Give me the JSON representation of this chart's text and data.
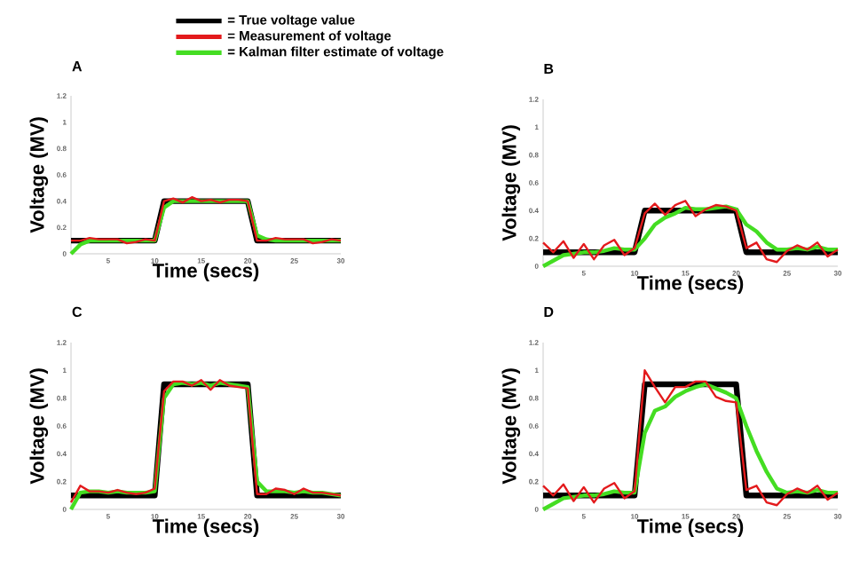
{
  "chart_data": [
    {
      "type": "line",
      "title": "A",
      "xlabel": "Time (secs)",
      "ylabel": "Voltage (MV)",
      "x": [
        1,
        2,
        3,
        4,
        5,
        6,
        7,
        8,
        9,
        10,
        11,
        12,
        13,
        14,
        15,
        16,
        17,
        18,
        19,
        20,
        21,
        22,
        23,
        24,
        25,
        26,
        27,
        28,
        29,
        30
      ],
      "xlim": [
        1,
        30
      ],
      "ylim": [
        0,
        1.2
      ],
      "xticks": [
        5,
        10,
        15,
        20,
        25,
        30
      ],
      "yticks": [
        0,
        0.2,
        0.4,
        0.6,
        0.8,
        1,
        1.2
      ],
      "legend": "top",
      "grid": false,
      "series": [
        {
          "name": "= True voltage value",
          "color": "#000000",
          "values": [
            0.1,
            0.1,
            0.1,
            0.1,
            0.1,
            0.1,
            0.1,
            0.1,
            0.1,
            0.1,
            0.4,
            0.4,
            0.4,
            0.4,
            0.4,
            0.4,
            0.4,
            0.4,
            0.4,
            0.4,
            0.1,
            0.1,
            0.1,
            0.1,
            0.1,
            0.1,
            0.1,
            0.1,
            0.1,
            0.1
          ]
        },
        {
          "name": "= Measurement of voltage",
          "color": "#e31a1c",
          "values": [
            0.1,
            0.1,
            0.12,
            0.11,
            0.11,
            0.11,
            0.08,
            0.09,
            0.11,
            0.1,
            0.4,
            0.42,
            0.39,
            0.43,
            0.4,
            0.41,
            0.39,
            0.41,
            0.41,
            0.4,
            0.1,
            0.1,
            0.12,
            0.11,
            0.11,
            0.11,
            0.08,
            0.09,
            0.11,
            0.1
          ]
        },
        {
          "name": "= Kalman filter estimate of voltage",
          "color": "#44dd22",
          "values": [
            0,
            0.07,
            0.1,
            0.1,
            0.1,
            0.1,
            0.1,
            0.1,
            0.1,
            0.1,
            0.35,
            0.4,
            0.4,
            0.4,
            0.4,
            0.4,
            0.4,
            0.4,
            0.4,
            0.4,
            0.14,
            0.11,
            0.1,
            0.1,
            0.1,
            0.1,
            0.1,
            0.1,
            0.1,
            0.1
          ]
        }
      ]
    },
    {
      "type": "line",
      "title": "B",
      "xlabel": "Time (secs)",
      "ylabel": "Voltage (MV)",
      "x": [
        1,
        2,
        3,
        4,
        5,
        6,
        7,
        8,
        9,
        10,
        11,
        12,
        13,
        14,
        15,
        16,
        17,
        18,
        19,
        20,
        21,
        22,
        23,
        24,
        25,
        26,
        27,
        28,
        29,
        30
      ],
      "xlim": [
        1,
        30
      ],
      "ylim": [
        0,
        1.2
      ],
      "xticks": [
        5,
        10,
        15,
        20,
        25,
        30
      ],
      "yticks": [
        0,
        0.2,
        0.4,
        0.6,
        0.8,
        1,
        1.2
      ],
      "grid": false,
      "series": [
        {
          "color": "#000000",
          "values": [
            0.1,
            0.1,
            0.1,
            0.1,
            0.1,
            0.1,
            0.1,
            0.1,
            0.1,
            0.1,
            0.4,
            0.4,
            0.4,
            0.4,
            0.4,
            0.4,
            0.4,
            0.4,
            0.4,
            0.4,
            0.1,
            0.1,
            0.1,
            0.1,
            0.1,
            0.1,
            0.1,
            0.1,
            0.1,
            0.1
          ]
        },
        {
          "color": "#e31a1c",
          "values": [
            0.17,
            0.1,
            0.18,
            0.06,
            0.16,
            0.05,
            0.15,
            0.19,
            0.08,
            0.13,
            0.38,
            0.45,
            0.37,
            0.44,
            0.47,
            0.36,
            0.41,
            0.44,
            0.43,
            0.4,
            0.13,
            0.17,
            0.05,
            0.03,
            0.11,
            0.15,
            0.12,
            0.17,
            0.07,
            0.12
          ]
        },
        {
          "color": "#44dd22",
          "values": [
            0,
            0.04,
            0.08,
            0.09,
            0.1,
            0.1,
            0.11,
            0.13,
            0.12,
            0.12,
            0.2,
            0.3,
            0.35,
            0.38,
            0.42,
            0.41,
            0.41,
            0.42,
            0.43,
            0.41,
            0.3,
            0.25,
            0.17,
            0.12,
            0.12,
            0.13,
            0.12,
            0.14,
            0.12,
            0.12
          ]
        }
      ]
    },
    {
      "type": "line",
      "title": "C",
      "xlabel": "Time (secs)",
      "ylabel": "Voltage (MV)",
      "x": [
        1,
        2,
        3,
        4,
        5,
        6,
        7,
        8,
        9,
        10,
        11,
        12,
        13,
        14,
        15,
        16,
        17,
        18,
        19,
        20,
        21,
        22,
        23,
        24,
        25,
        26,
        27,
        28,
        29,
        30
      ],
      "xlim": [
        1,
        30
      ],
      "ylim": [
        0,
        1.2
      ],
      "xticks": [
        5,
        10,
        15,
        20,
        25,
        30
      ],
      "yticks": [
        0,
        0.2,
        0.4,
        0.6,
        0.8,
        1,
        1.2
      ],
      "grid": false,
      "series": [
        {
          "color": "#000000",
          "values": [
            0.1,
            0.1,
            0.1,
            0.1,
            0.1,
            0.1,
            0.1,
            0.1,
            0.1,
            0.1,
            0.9,
            0.9,
            0.9,
            0.9,
            0.9,
            0.9,
            0.9,
            0.9,
            0.9,
            0.9,
            0.1,
            0.1,
            0.1,
            0.1,
            0.1,
            0.1,
            0.1,
            0.1,
            0.1,
            0.1
          ]
        },
        {
          "color": "#e31a1c",
          "values": [
            0.05,
            0.17,
            0.13,
            0.13,
            0.12,
            0.14,
            0.12,
            0.11,
            0.12,
            0.15,
            0.85,
            0.92,
            0.92,
            0.89,
            0.93,
            0.86,
            0.93,
            0.89,
            0.88,
            0.87,
            0.11,
            0.11,
            0.15,
            0.14,
            0.11,
            0.15,
            0.12,
            0.12,
            0.11,
            0.1
          ]
        },
        {
          "color": "#44dd22",
          "values": [
            0,
            0.12,
            0.13,
            0.13,
            0.12,
            0.13,
            0.12,
            0.12,
            0.12,
            0.13,
            0.8,
            0.9,
            0.91,
            0.9,
            0.91,
            0.89,
            0.91,
            0.9,
            0.89,
            0.88,
            0.2,
            0.13,
            0.13,
            0.13,
            0.12,
            0.13,
            0.12,
            0.12,
            0.11,
            0.1
          ]
        }
      ]
    },
    {
      "type": "line",
      "title": "D",
      "xlabel": "Time (secs)",
      "ylabel": "Voltage (MV)",
      "x": [
        1,
        2,
        3,
        4,
        5,
        6,
        7,
        8,
        9,
        10,
        11,
        12,
        13,
        14,
        15,
        16,
        17,
        18,
        19,
        20,
        21,
        22,
        23,
        24,
        25,
        26,
        27,
        28,
        29,
        30
      ],
      "xlim": [
        1,
        30
      ],
      "ylim": [
        0,
        1.2
      ],
      "xticks": [
        5,
        10,
        15,
        20,
        25,
        30
      ],
      "yticks": [
        0,
        0.2,
        0.4,
        0.6,
        0.8,
        1,
        1.2
      ],
      "grid": false,
      "series": [
        {
          "color": "#000000",
          "values": [
            0.1,
            0.1,
            0.1,
            0.1,
            0.1,
            0.1,
            0.1,
            0.1,
            0.1,
            0.1,
            0.9,
            0.9,
            0.9,
            0.9,
            0.9,
            0.9,
            0.9,
            0.9,
            0.9,
            0.9,
            0.1,
            0.1,
            0.1,
            0.1,
            0.1,
            0.1,
            0.1,
            0.1,
            0.1,
            0.1
          ]
        },
        {
          "color": "#e31a1c",
          "values": [
            0.17,
            0.1,
            0.18,
            0.06,
            0.16,
            0.05,
            0.15,
            0.19,
            0.08,
            0.13,
            1.0,
            0.88,
            0.77,
            0.88,
            0.88,
            0.92,
            0.92,
            0.81,
            0.78,
            0.77,
            0.14,
            0.17,
            0.05,
            0.03,
            0.11,
            0.15,
            0.12,
            0.17,
            0.07,
            0.12
          ]
        },
        {
          "color": "#44dd22",
          "values": [
            0,
            0.04,
            0.08,
            0.09,
            0.1,
            0.1,
            0.11,
            0.13,
            0.12,
            0.12,
            0.55,
            0.71,
            0.74,
            0.81,
            0.85,
            0.88,
            0.9,
            0.87,
            0.84,
            0.8,
            0.6,
            0.42,
            0.27,
            0.15,
            0.12,
            0.13,
            0.12,
            0.14,
            0.12,
            0.12
          ]
        }
      ]
    }
  ]
}
